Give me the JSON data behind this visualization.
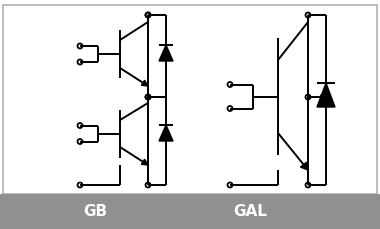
{
  "bg_color": "#ffffff",
  "border_color": "#b0b0b0",
  "line_color": "#000000",
  "footer_bg": "#909090",
  "footer_text_color": "#ffffff",
  "label_gb": "GB",
  "label_gal": "GAL",
  "label_fontsize": 11,
  "fig_width": 3.8,
  "fig_height": 2.29,
  "dpi": 100
}
